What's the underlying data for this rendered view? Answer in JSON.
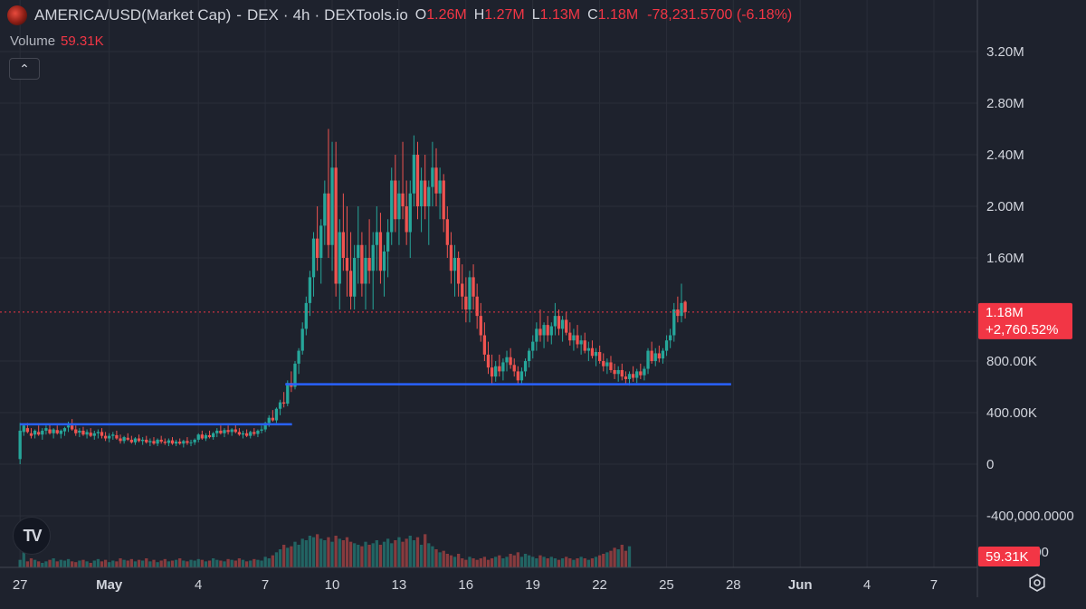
{
  "header": {
    "symbol": "AMERICA/USD(Market Cap)",
    "exchange": "DEX",
    "interval": "4h",
    "source": "DEXTools.io",
    "sep": "·",
    "dash": "-",
    "o_label": "O",
    "o_value": "1.26M",
    "h_label": "H",
    "h_value": "1.27M",
    "l_label": "L",
    "l_value": "1.13M",
    "c_label": "C",
    "c_value": "1.18M",
    "change": "-78,231.5700 (-6.18%)"
  },
  "volume_legend": {
    "label": "Volume",
    "value": "59.31K"
  },
  "collapse_button": {
    "glyph": "⌃"
  },
  "tv_logo": {
    "text": "TV"
  },
  "chart_data": {
    "type": "candlestick",
    "y_axis": {
      "ticks": [
        {
          "value": 3200000,
          "label": "3.20M"
        },
        {
          "value": 2800000,
          "label": "2.80M"
        },
        {
          "value": 2400000,
          "label": "2.40M"
        },
        {
          "value": 2000000,
          "label": "2.00M"
        },
        {
          "value": 1600000,
          "label": "1.60M"
        },
        {
          "value": 800000,
          "label": "800.00K"
        },
        {
          "value": 400000,
          "label": "400.00K"
        },
        {
          "value": 0,
          "label": "0"
        },
        {
          "value": -400000,
          "label": "-400,000.0000"
        }
      ],
      "range": [
        -800000,
        3600000
      ]
    },
    "x_axis": {
      "ticks": [
        {
          "day": 27,
          "label": "27"
        },
        {
          "day": 31,
          "label": "May",
          "bold": true
        },
        {
          "day": 35,
          "label": "4"
        },
        {
          "day": 38,
          "label": "7"
        },
        {
          "day": 41,
          "label": "10"
        },
        {
          "day": 44,
          "label": "13"
        },
        {
          "day": 47,
          "label": "16"
        },
        {
          "day": 50,
          "label": "19"
        },
        {
          "day": 53,
          "label": "22"
        },
        {
          "day": 56,
          "label": "25"
        },
        {
          "day": 59,
          "label": "28"
        },
        {
          "day": 62,
          "label": "Jun",
          "bold": true
        },
        {
          "day": 65,
          "label": "4"
        },
        {
          "day": 68,
          "label": "7"
        }
      ],
      "range": [
        26.1,
        69.95
      ]
    },
    "last_price": {
      "value": 1180000,
      "label": "1.18M",
      "change_label": "+2,760.52%"
    },
    "volume_last": {
      "label": "59.31K",
      "axis_label": "0.0000"
    },
    "horizontal_lines": [
      {
        "value": 310000,
        "from_day": 27,
        "to_day": 39.2
      },
      {
        "value": 620000,
        "from_day": 38.9,
        "to_day": 58.9
      }
    ],
    "colors": {
      "up": "#26a69a",
      "down": "#ef5350",
      "line": "#2962ff",
      "badge": "#f23645",
      "grid": "#2a2e39"
    },
    "candle_step_days": 0.1667,
    "start_day": 27,
    "ohlc": [
      [
        40000,
        320000,
        0,
        260000
      ],
      [
        250000,
        310000,
        220000,
        300000
      ],
      [
        280000,
        320000,
        240000,
        250000
      ],
      [
        240000,
        280000,
        200000,
        220000
      ],
      [
        230000,
        270000,
        200000,
        260000
      ],
      [
        250000,
        300000,
        220000,
        230000
      ],
      [
        230000,
        280000,
        190000,
        260000
      ],
      [
        260000,
        300000,
        230000,
        280000
      ],
      [
        270000,
        310000,
        230000,
        240000
      ],
      [
        240000,
        280000,
        200000,
        270000
      ],
      [
        265000,
        300000,
        230000,
        240000
      ],
      [
        235000,
        270000,
        200000,
        260000
      ],
      [
        255000,
        290000,
        220000,
        280000
      ],
      [
        285000,
        330000,
        250000,
        300000
      ],
      [
        300000,
        350000,
        260000,
        270000
      ],
      [
        270000,
        300000,
        220000,
        240000
      ],
      [
        245000,
        280000,
        210000,
        260000
      ],
      [
        260000,
        290000,
        220000,
        230000
      ],
      [
        230000,
        270000,
        200000,
        250000
      ],
      [
        245000,
        280000,
        210000,
        220000
      ],
      [
        220000,
        260000,
        190000,
        240000
      ],
      [
        240000,
        270000,
        200000,
        250000
      ],
      [
        250000,
        280000,
        200000,
        220000
      ],
      [
        220000,
        250000,
        180000,
        200000
      ],
      [
        200000,
        240000,
        170000,
        220000
      ],
      [
        220000,
        250000,
        190000,
        230000
      ],
      [
        225000,
        260000,
        190000,
        200000
      ],
      [
        200000,
        230000,
        160000,
        180000
      ],
      [
        180000,
        220000,
        160000,
        210000
      ],
      [
        205000,
        240000,
        180000,
        190000
      ],
      [
        190000,
        220000,
        160000,
        170000
      ],
      [
        170000,
        210000,
        150000,
        200000
      ],
      [
        200000,
        230000,
        170000,
        180000
      ],
      [
        180000,
        210000,
        150000,
        190000
      ],
      [
        190000,
        220000,
        160000,
        170000
      ],
      [
        170000,
        200000,
        140000,
        180000
      ],
      [
        180000,
        210000,
        150000,
        160000
      ],
      [
        160000,
        200000,
        140000,
        190000
      ],
      [
        190000,
        220000,
        160000,
        175000
      ],
      [
        175000,
        200000,
        150000,
        165000
      ],
      [
        165000,
        200000,
        140000,
        185000
      ],
      [
        185000,
        210000,
        150000,
        160000
      ],
      [
        160000,
        190000,
        140000,
        175000
      ],
      [
        175000,
        200000,
        150000,
        160000
      ],
      [
        160000,
        190000,
        130000,
        180000
      ],
      [
        180000,
        210000,
        150000,
        165000
      ],
      [
        165000,
        190000,
        140000,
        170000
      ],
      [
        170000,
        200000,
        150000,
        190000
      ],
      [
        190000,
        240000,
        170000,
        230000
      ],
      [
        230000,
        260000,
        190000,
        200000
      ],
      [
        200000,
        240000,
        180000,
        225000
      ],
      [
        225000,
        260000,
        200000,
        210000
      ],
      [
        210000,
        250000,
        190000,
        240000
      ],
      [
        240000,
        280000,
        210000,
        260000
      ],
      [
        260000,
        300000,
        230000,
        240000
      ],
      [
        240000,
        280000,
        210000,
        265000
      ],
      [
        265000,
        300000,
        230000,
        250000
      ],
      [
        250000,
        280000,
        220000,
        270000
      ],
      [
        270000,
        310000,
        240000,
        250000
      ],
      [
        250000,
        280000,
        220000,
        230000
      ],
      [
        230000,
        260000,
        200000,
        240000
      ],
      [
        240000,
        270000,
        210000,
        220000
      ],
      [
        220000,
        260000,
        200000,
        250000
      ],
      [
        250000,
        280000,
        220000,
        235000
      ],
      [
        235000,
        270000,
        210000,
        260000
      ],
      [
        260000,
        300000,
        240000,
        270000
      ],
      [
        270000,
        330000,
        250000,
        320000
      ],
      [
        320000,
        380000,
        290000,
        360000
      ],
      [
        360000,
        420000,
        330000,
        340000
      ],
      [
        340000,
        440000,
        320000,
        430000
      ],
      [
        430000,
        500000,
        380000,
        480000
      ],
      [
        480000,
        560000,
        440000,
        470000
      ],
      [
        470000,
        650000,
        450000,
        630000
      ],
      [
        630000,
        720000,
        560000,
        600000
      ],
      [
        600000,
        800000,
        580000,
        780000
      ],
      [
        780000,
        900000,
        700000,
        880000
      ],
      [
        880000,
        1100000,
        850000,
        1050000
      ],
      [
        1050000,
        1300000,
        1000000,
        1250000
      ],
      [
        1250000,
        1500000,
        1150000,
        1450000
      ],
      [
        1450000,
        1800000,
        1300000,
        1750000
      ],
      [
        1750000,
        2000000,
        1500000,
        1600000
      ],
      [
        1600000,
        1900000,
        1400000,
        1850000
      ],
      [
        1850000,
        2200000,
        1700000,
        2100000
      ],
      [
        2100000,
        2600000,
        1600000,
        1700000
      ],
      [
        1700000,
        2500000,
        1500000,
        2300000
      ],
      [
        2300000,
        2500000,
        1300000,
        1400000
      ],
      [
        1400000,
        1900000,
        1200000,
        1800000
      ],
      [
        1800000,
        2100000,
        1500000,
        1600000
      ],
      [
        1600000,
        2000000,
        1300000,
        1500000
      ],
      [
        1500000,
        1800000,
        1200000,
        1300000
      ],
      [
        1300000,
        1700000,
        1200000,
        1600000
      ],
      [
        1600000,
        2000000,
        1400000,
        1700000
      ],
      [
        1700000,
        1800000,
        1300000,
        1400000
      ],
      [
        1400000,
        1700000,
        1200000,
        1600000
      ],
      [
        1600000,
        1900000,
        1400000,
        1500000
      ],
      [
        1500000,
        1800000,
        1200000,
        1700000
      ],
      [
        1700000,
        2000000,
        1500000,
        1800000
      ],
      [
        1800000,
        1950000,
        1400000,
        1500000
      ],
      [
        1500000,
        1700000,
        1300000,
        1650000
      ],
      [
        1650000,
        1900000,
        1450000,
        1800000
      ],
      [
        1800000,
        2300000,
        1700000,
        2200000
      ],
      [
        2200000,
        2400000,
        1800000,
        1900000
      ],
      [
        1900000,
        2200000,
        1700000,
        2100000
      ],
      [
        2100000,
        2500000,
        1900000,
        2000000
      ],
      [
        2000000,
        2200000,
        1700000,
        1800000
      ],
      [
        1800000,
        2200000,
        1600000,
        2100000
      ],
      [
        2100000,
        2550000,
        2000000,
        2400000
      ],
      [
        2400000,
        2500000,
        1900000,
        2000000
      ],
      [
        2000000,
        2300000,
        1800000,
        2200000
      ],
      [
        2200000,
        2400000,
        1900000,
        2000000
      ],
      [
        2000000,
        2200000,
        1700000,
        2150000
      ],
      [
        2150000,
        2500000,
        2000000,
        2300000
      ],
      [
        2300000,
        2450000,
        2000000,
        2100000
      ],
      [
        2100000,
        2300000,
        1900000,
        2200000
      ],
      [
        2200000,
        2250000,
        1800000,
        1900000
      ],
      [
        1900000,
        2000000,
        1600000,
        1700000
      ],
      [
        1700000,
        1800000,
        1400000,
        1500000
      ],
      [
        1500000,
        1700000,
        1300000,
        1600000
      ],
      [
        1600000,
        1650000,
        1300000,
        1400000
      ],
      [
        1400000,
        1550000,
        1200000,
        1300000
      ],
      [
        1300000,
        1450000,
        1100000,
        1200000
      ],
      [
        1200000,
        1500000,
        1100000,
        1450000
      ],
      [
        1450000,
        1550000,
        1200000,
        1300000
      ],
      [
        1300000,
        1400000,
        1050000,
        1150000
      ],
      [
        1150000,
        1250000,
        950000,
        1000000
      ],
      [
        1000000,
        1100000,
        800000,
        850000
      ],
      [
        850000,
        950000,
        700000,
        750000
      ],
      [
        750000,
        850000,
        620000,
        680000
      ],
      [
        680000,
        800000,
        640000,
        760000
      ],
      [
        760000,
        850000,
        680000,
        720000
      ],
      [
        720000,
        820000,
        650000,
        790000
      ],
      [
        790000,
        880000,
        720000,
        830000
      ],
      [
        830000,
        900000,
        740000,
        770000
      ],
      [
        770000,
        820000,
        680000,
        720000
      ],
      [
        720000,
        760000,
        620000,
        650000
      ],
      [
        650000,
        750000,
        620000,
        720000
      ],
      [
        720000,
        820000,
        680000,
        800000
      ],
      [
        800000,
        900000,
        750000,
        880000
      ],
      [
        880000,
        1000000,
        820000,
        950000
      ],
      [
        950000,
        1100000,
        880000,
        1050000
      ],
      [
        1050000,
        1200000,
        950000,
        1000000
      ],
      [
        1000000,
        1100000,
        900000,
        1080000
      ],
      [
        1080000,
        1150000,
        950000,
        1000000
      ],
      [
        1000000,
        1100000,
        930000,
        1070000
      ],
      [
        1070000,
        1250000,
        1000000,
        1150000
      ],
      [
        1150000,
        1200000,
        1000000,
        1050000
      ],
      [
        1050000,
        1150000,
        950000,
        1120000
      ],
      [
        1120000,
        1180000,
        1000000,
        1020000
      ],
      [
        1020000,
        1100000,
        920000,
        960000
      ],
      [
        960000,
        1050000,
        880000,
        1000000
      ],
      [
        1000000,
        1080000,
        900000,
        930000
      ],
      [
        930000,
        1000000,
        850000,
        960000
      ],
      [
        960000,
        1020000,
        860000,
        880000
      ],
      [
        880000,
        950000,
        800000,
        900000
      ],
      [
        900000,
        960000,
        820000,
        840000
      ],
      [
        840000,
        900000,
        760000,
        870000
      ],
      [
        870000,
        920000,
        780000,
        800000
      ],
      [
        800000,
        860000,
        720000,
        760000
      ],
      [
        760000,
        820000,
        700000,
        790000
      ],
      [
        790000,
        840000,
        710000,
        730000
      ],
      [
        730000,
        780000,
        660000,
        700000
      ],
      [
        700000,
        760000,
        640000,
        730000
      ],
      [
        730000,
        780000,
        650000,
        680000
      ],
      [
        680000,
        720000,
        620000,
        660000
      ],
      [
        660000,
        720000,
        610000,
        700000
      ],
      [
        700000,
        760000,
        640000,
        670000
      ],
      [
        670000,
        740000,
        630000,
        720000
      ],
      [
        720000,
        780000,
        660000,
        690000
      ],
      [
        690000,
        760000,
        650000,
        740000
      ],
      [
        740000,
        900000,
        700000,
        880000
      ],
      [
        880000,
        950000,
        780000,
        800000
      ],
      [
        800000,
        900000,
        760000,
        860000
      ],
      [
        860000,
        920000,
        790000,
        820000
      ],
      [
        820000,
        900000,
        780000,
        880000
      ],
      [
        880000,
        1000000,
        840000,
        960000
      ],
      [
        960000,
        1050000,
        900000,
        1000000
      ],
      [
        1000000,
        1250000,
        950000,
        1200000
      ],
      [
        1200000,
        1300000,
        1100000,
        1150000
      ],
      [
        1150000,
        1400000,
        1100000,
        1250000
      ],
      [
        1260000,
        1270000,
        1130000,
        1180000
      ]
    ],
    "volume_bars": [
      10,
      20,
      8,
      12,
      10,
      8,
      6,
      8,
      10,
      12,
      8,
      10,
      9,
      11,
      8,
      7,
      9,
      10,
      8,
      6,
      9,
      11,
      8,
      10,
      7,
      9,
      8,
      12,
      10,
      9,
      11,
      8,
      10,
      9,
      12,
      8,
      10,
      7,
      9,
      11,
      8,
      9,
      10,
      12,
      9,
      8,
      10,
      9,
      11,
      10,
      8,
      9,
      12,
      10,
      9,
      8,
      11,
      10,
      9,
      12,
      10,
      8,
      9,
      11,
      10,
      9,
      14,
      12,
      16,
      20,
      24,
      30,
      26,
      28,
      34,
      30,
      38,
      36,
      42,
      40,
      44,
      38,
      36,
      40,
      34,
      42,
      38,
      36,
      40,
      34,
      32,
      30,
      28,
      34,
      30,
      32,
      36,
      30,
      34,
      38,
      32,
      36,
      40,
      34,
      38,
      42,
      36,
      40,
      30,
      44,
      32,
      28,
      24,
      20,
      22,
      18,
      16,
      14,
      18,
      12,
      10,
      14,
      12,
      10,
      12,
      14,
      10,
      12,
      14,
      16,
      12,
      14,
      18,
      16,
      20,
      14,
      18,
      16,
      14,
      12,
      16,
      14,
      12,
      14,
      12,
      10,
      12,
      14,
      12,
      10,
      12,
      14,
      12,
      10,
      12,
      14,
      16,
      18,
      20,
      22,
      26,
      24,
      30,
      22,
      28
    ],
    "volume_max": 60
  }
}
